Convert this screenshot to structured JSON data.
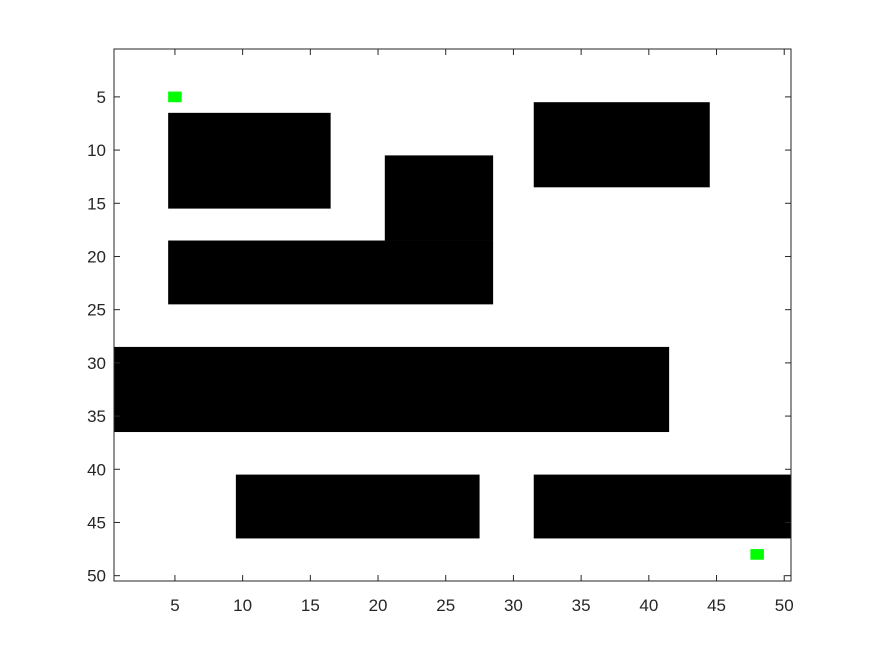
{
  "chart_data": {
    "type": "heatmap",
    "title": "",
    "xlabel": "",
    "ylabel": "",
    "grid": false,
    "xlim": [
      0.5,
      50.5
    ],
    "ylim": [
      0.5,
      50.5
    ],
    "y_reversed": true,
    "x_ticks": [
      5,
      10,
      15,
      20,
      25,
      30,
      35,
      40,
      45,
      50
    ],
    "y_ticks": [
      5,
      10,
      15,
      20,
      25,
      30,
      35,
      40,
      45,
      50
    ],
    "x_tick_labels": [
      "5",
      "10",
      "15",
      "20",
      "25",
      "30",
      "35",
      "40",
      "45",
      "50"
    ],
    "y_tick_labels": [
      "5",
      "10",
      "15",
      "20",
      "25",
      "30",
      "35",
      "40",
      "45",
      "50"
    ],
    "colors": {
      "free": "#ffffff",
      "obstacle": "#000000",
      "marker": "#00ff00",
      "axes": "#262626"
    },
    "obstacles": [
      {
        "col_start": 5,
        "col_end": 16,
        "row_start": 7,
        "row_end": 15
      },
      {
        "col_start": 21,
        "col_end": 28,
        "row_start": 11,
        "row_end": 18
      },
      {
        "col_start": 5,
        "col_end": 28,
        "row_start": 19,
        "row_end": 24
      },
      {
        "col_start": 32,
        "col_end": 44,
        "row_start": 6,
        "row_end": 13
      },
      {
        "col_start": 1,
        "col_end": 41,
        "row_start": 29,
        "row_end": 36
      },
      {
        "col_start": 10,
        "col_end": 27,
        "row_start": 41,
        "row_end": 46
      },
      {
        "col_start": 32,
        "col_end": 50,
        "row_start": 41,
        "row_end": 46
      }
    ],
    "markers": [
      {
        "col": 5,
        "row": 5
      },
      {
        "col": 48,
        "row": 48
      }
    ]
  }
}
